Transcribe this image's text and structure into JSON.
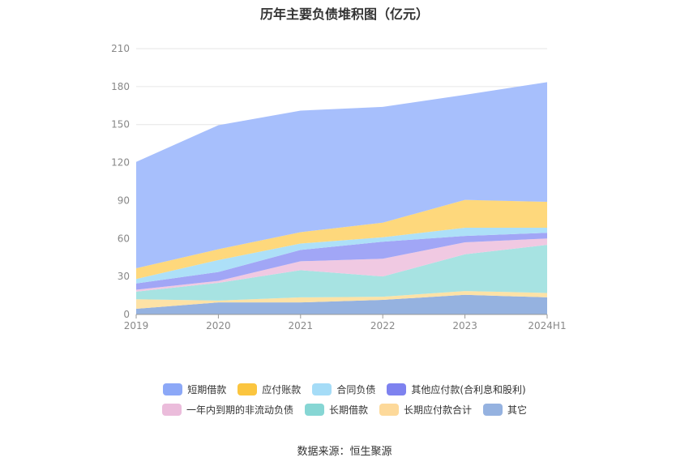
{
  "chart_title": "历年主要负债堆积图（亿元）",
  "source_text": "数据来源：恒生聚源",
  "chart_data": {
    "type": "area",
    "stacked": true,
    "title": "历年主要负债堆积图（亿元）",
    "categories": [
      "2019",
      "2020",
      "2021",
      "2022",
      "2023",
      "2024H1"
    ],
    "yticks": [
      0,
      30,
      60,
      90,
      120,
      150,
      180,
      210
    ],
    "ylim": [
      0,
      210
    ],
    "grid": true,
    "legend_position": "bottom",
    "series": [
      {
        "name": "其它",
        "color": "#95b2e0",
        "values": [
          4.5,
          9.5,
          9.5,
          11.5,
          15.5,
          13.5
        ]
      },
      {
        "name": "长期应付款合计",
        "color": "#fde2a6",
        "values": [
          7.5,
          1.5,
          4.0,
          2.5,
          3.0,
          3.5
        ]
      },
      {
        "name": "长期借款",
        "color": "#a7e3e2",
        "values": [
          6.0,
          14.0,
          21.5,
          16.0,
          29.0,
          38.0
        ]
      },
      {
        "name": "一年内到期的非流动负债",
        "color": "#f0c9e2",
        "values": [
          1.5,
          1.5,
          7.0,
          14.0,
          9.5,
          5.0
        ]
      },
      {
        "name": "其他应付款(合利息和股利)",
        "color": "#a1a6f6",
        "values": [
          5.0,
          7.0,
          9.0,
          13.5,
          5.0,
          4.5
        ]
      },
      {
        "name": "合同负债",
        "color": "#ade0f8",
        "values": [
          3.5,
          9.5,
          5.0,
          3.5,
          6.5,
          4.0
        ]
      },
      {
        "name": "应付账款",
        "color": "#fed87c",
        "values": [
          8.5,
          8.5,
          9.0,
          11.5,
          22.0,
          20.5
        ]
      },
      {
        "name": "短期借款",
        "color": "#a7bffc",
        "values": [
          84.0,
          98.0,
          96.0,
          91.5,
          83.0,
          94.5
        ]
      }
    ]
  },
  "legend": [
    [
      {
        "label": "短期借款",
        "color": "#8ca8f7"
      },
      {
        "label": "应付账款",
        "color": "#fbc53f"
      },
      {
        "label": "合同负债",
        "color": "#a5dcf7"
      },
      {
        "label": "其他应付款(合利息和股利)",
        "color": "#7e82ef"
      }
    ],
    [
      {
        "label": "一年内到期的非流动负债",
        "color": "#ebbcdb"
      },
      {
        "label": "长期借款",
        "color": "#86d6d4"
      },
      {
        "label": "长期应付款合计",
        "color": "#fdd99a"
      },
      {
        "label": "其它",
        "color": "#95b2e0"
      }
    ]
  ]
}
